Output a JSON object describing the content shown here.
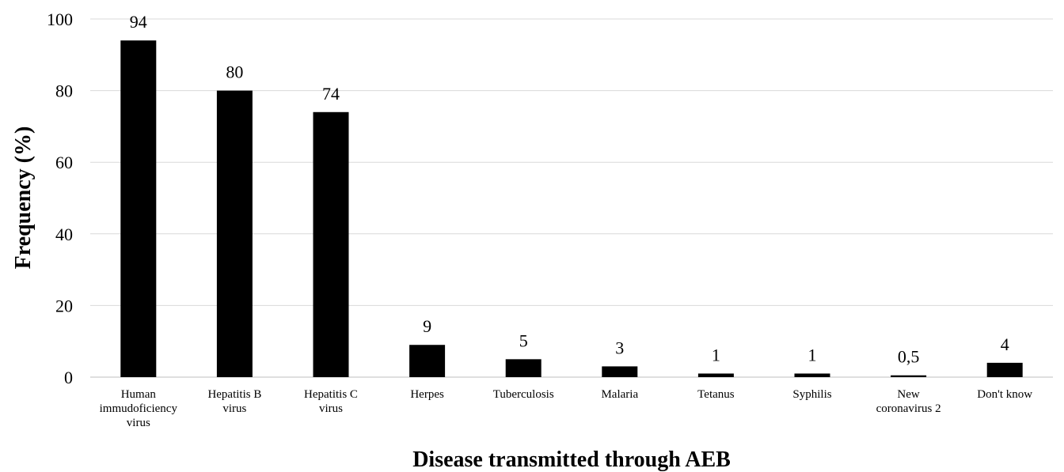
{
  "chart_data": {
    "type": "bar",
    "categories": [
      [
        "Human",
        "immudoficiency",
        "virus"
      ],
      [
        "Hepatitis B",
        "virus"
      ],
      [
        "Hepatitis C",
        "virus"
      ],
      [
        "Herpes"
      ],
      [
        "Tuberculosis"
      ],
      [
        "Malaria"
      ],
      [
        "Tetanus"
      ],
      [
        "Syphilis"
      ],
      [
        "New",
        "coronavirus 2"
      ],
      [
        "Don't know"
      ]
    ],
    "values": [
      94,
      80,
      74,
      9,
      5,
      3,
      1,
      1,
      0.5,
      4
    ],
    "value_labels": [
      "94",
      "80",
      "74",
      "9",
      "5",
      "3",
      "1",
      "1",
      "0,5",
      "4"
    ],
    "title": "",
    "xlabel": "Disease transmitted through AEB",
    "ylabel": "Frequency (%)",
    "ylim": [
      0,
      100
    ],
    "yticks": [
      0,
      20,
      40,
      60,
      80,
      100
    ],
    "grid": true,
    "bar_color": "#000000"
  }
}
